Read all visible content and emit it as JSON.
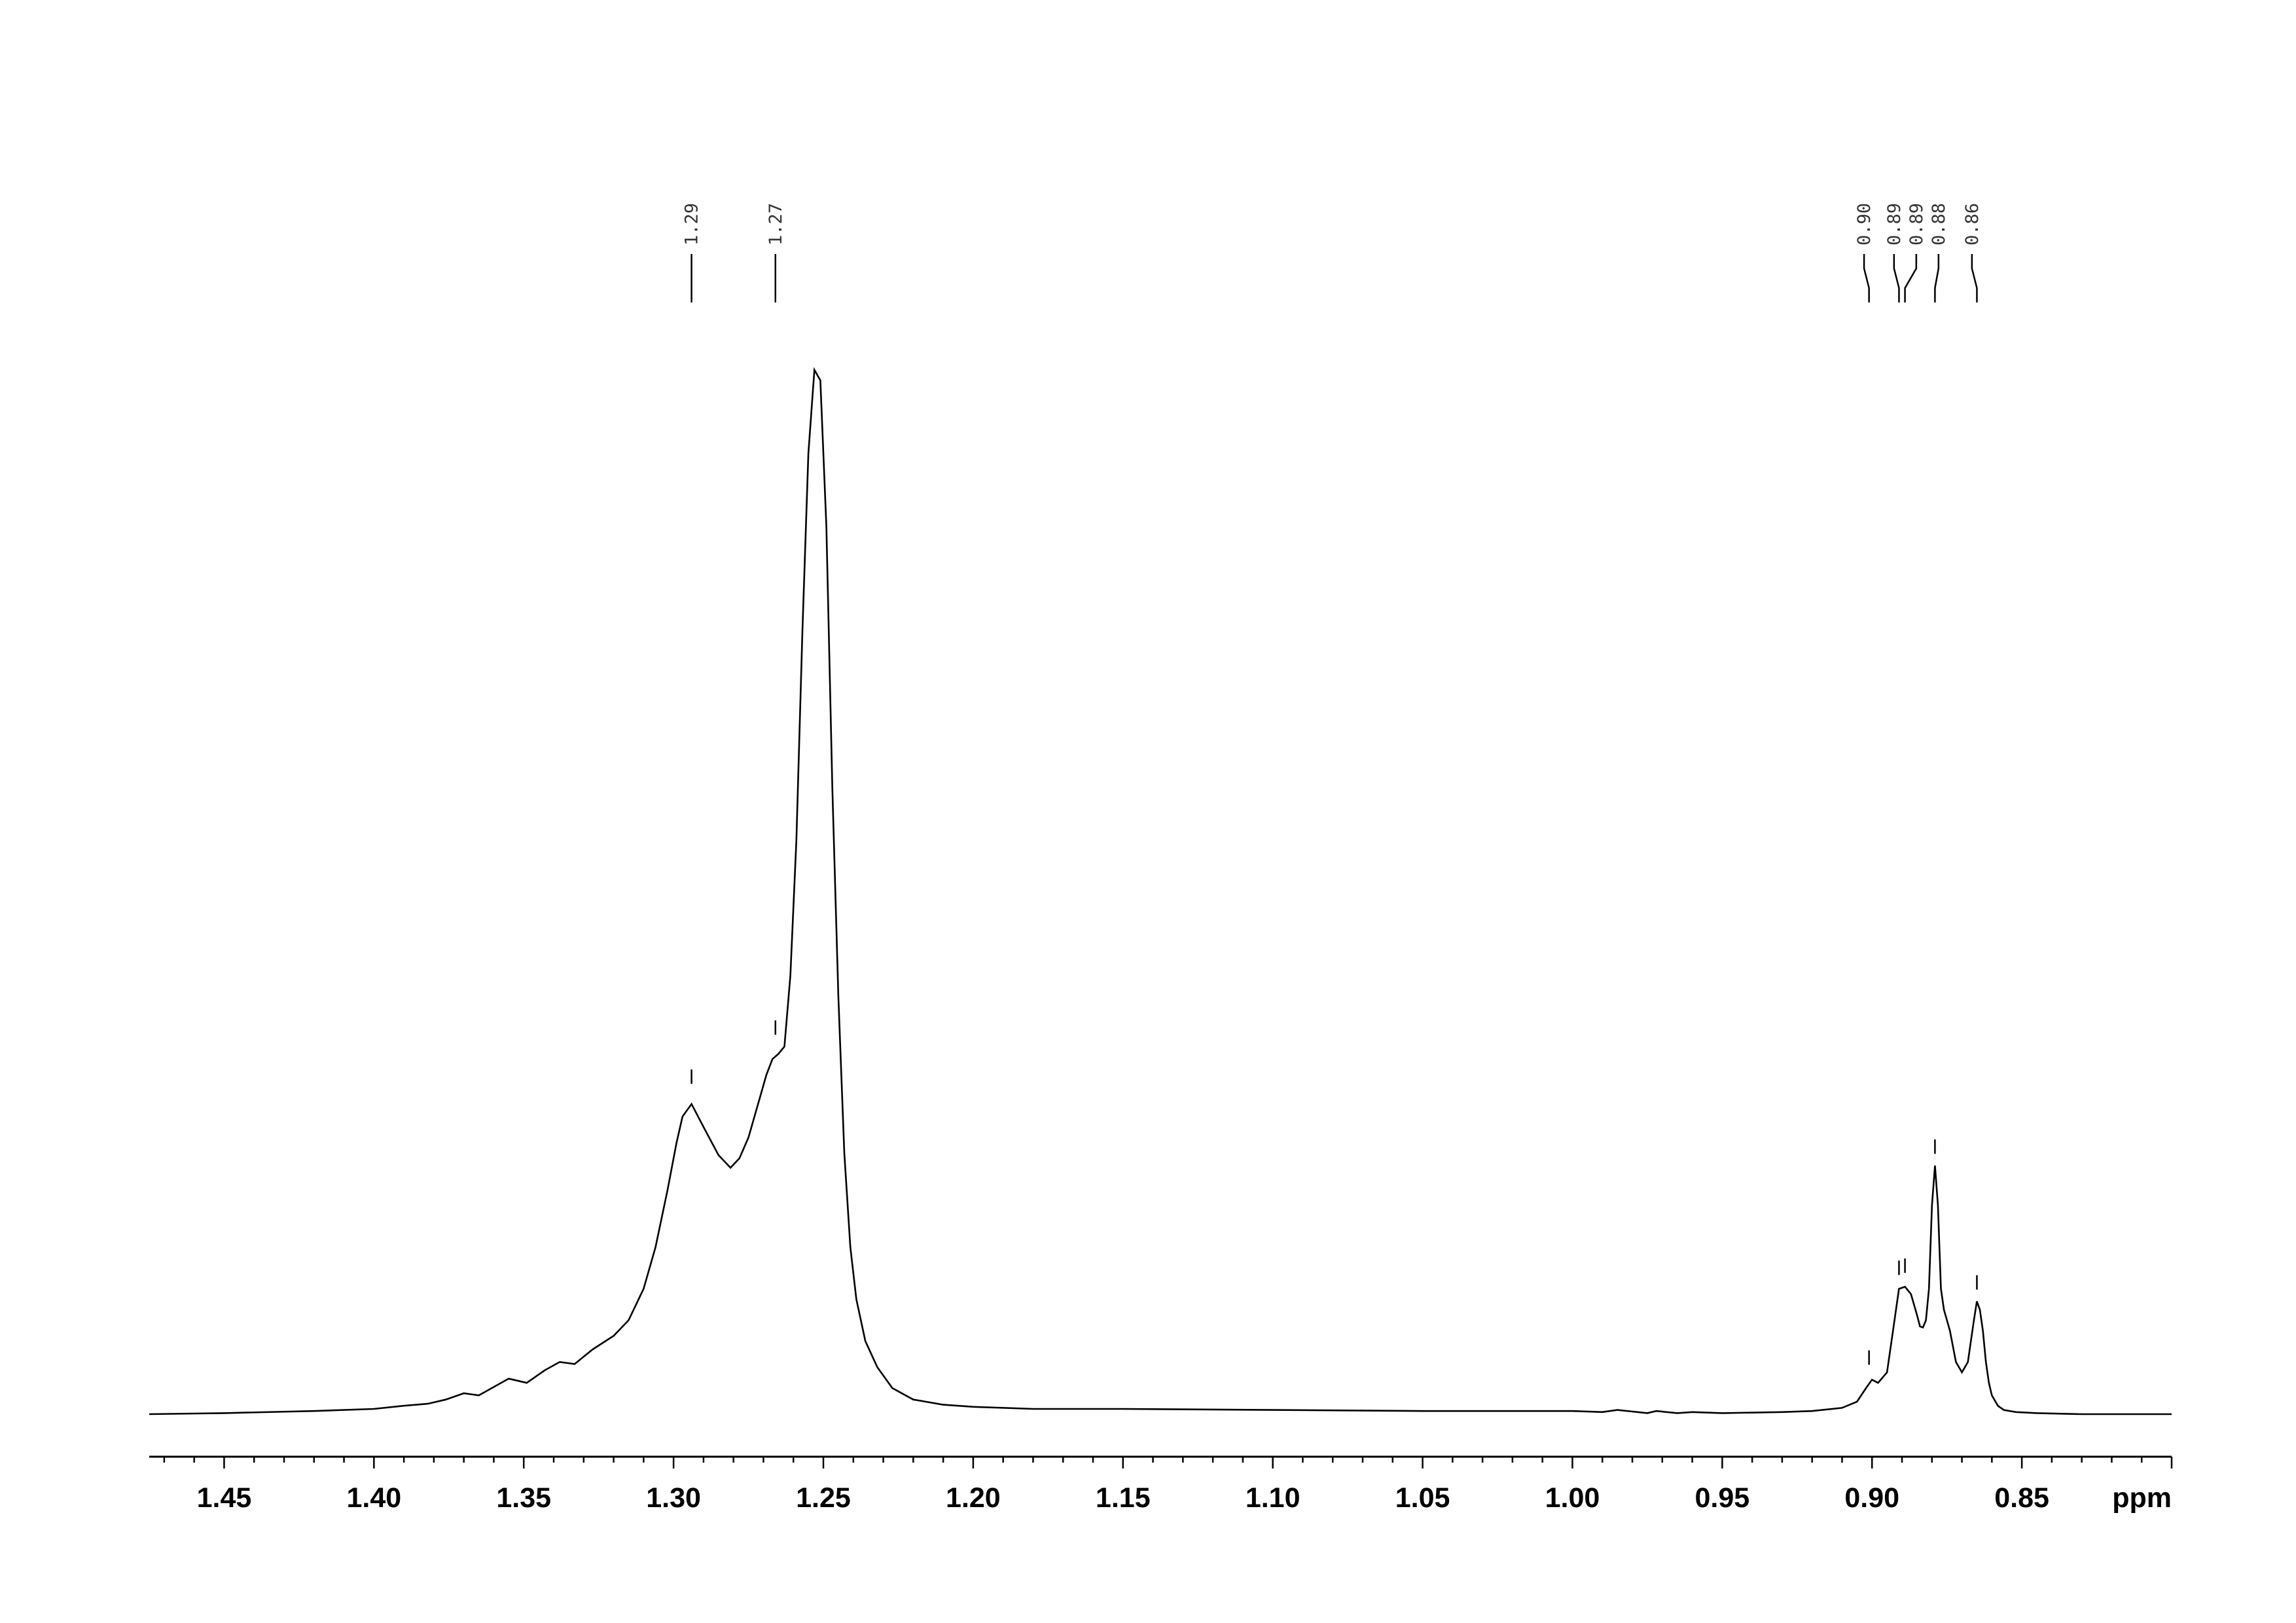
{
  "chart_data": {
    "type": "line",
    "title": "",
    "xlabel": "ppm",
    "ylabel": "",
    "x_reversed": true,
    "xlim": [
      1.475,
      0.8
    ],
    "ylim": [
      -0.02,
      1.08
    ],
    "grid": false,
    "legend": "none",
    "x_ticks": [
      "1.45",
      "1.40",
      "1.35",
      "1.30",
      "1.25",
      "1.20",
      "1.15",
      "1.10",
      "1.05",
      "1.00",
      "0.95",
      "0.90",
      "0.85"
    ],
    "tick_values": [
      1.45,
      1.4,
      1.35,
      1.3,
      1.25,
      1.2,
      1.15,
      1.1,
      1.05,
      1.0,
      0.95,
      0.9,
      0.85
    ],
    "peak_labels": [
      {
        "label": "1.29",
        "ppm": 1.294,
        "height": 0.305
      },
      {
        "label": "1.27",
        "ppm": 1.266,
        "height": 0.352
      },
      {
        "label": "0.90",
        "ppm": 0.901,
        "height": 0.036
      },
      {
        "label": "0.89",
        "ppm": 0.891,
        "height": 0.122
      },
      {
        "label": "0.89",
        "ppm": 0.889,
        "height": 0.124
      },
      {
        "label": "0.88",
        "ppm": 0.879,
        "height": 0.238
      },
      {
        "label": "0.86",
        "ppm": 0.865,
        "height": 0.108
      }
    ],
    "series": [
      {
        "x": [
          1.475,
          1.45,
          1.42,
          1.4,
          1.39,
          1.382,
          1.376,
          1.37,
          1.365,
          1.36,
          1.355,
          1.349,
          1.343,
          1.338,
          1.333,
          1.327,
          1.32,
          1.315,
          1.31,
          1.306,
          1.302,
          1.299,
          1.297,
          1.294,
          1.29,
          1.285,
          1.281,
          1.278,
          1.275,
          1.272,
          1.269,
          1.267,
          1.265,
          1.263,
          1.261,
          1.259,
          1.257,
          1.255,
          1.253,
          1.251,
          1.249,
          1.247,
          1.245,
          1.243,
          1.241,
          1.239,
          1.236,
          1.232,
          1.227,
          1.22,
          1.21,
          1.2,
          1.18,
          1.15,
          1.1,
          1.05,
          1.0,
          0.99,
          0.985,
          0.975,
          0.972,
          0.965,
          0.96,
          0.95,
          0.93,
          0.92,
          0.91,
          0.905,
          0.902,
          0.9,
          0.898,
          0.895,
          0.893,
          0.891,
          0.889,
          0.887,
          0.885,
          0.884,
          0.883,
          0.882,
          0.881,
          0.88,
          0.879,
          0.878,
          0.877,
          0.876,
          0.874,
          0.872,
          0.87,
          0.868,
          0.867,
          0.866,
          0.865,
          0.864,
          0.863,
          0.862,
          0.861,
          0.86,
          0.858,
          0.856,
          0.852,
          0.845,
          0.83,
          0.8
        ],
        "y": [
          0.0,
          0.001,
          0.003,
          0.005,
          0.008,
          0.01,
          0.014,
          0.02,
          0.018,
          0.026,
          0.034,
          0.03,
          0.042,
          0.05,
          0.048,
          0.062,
          0.075,
          0.09,
          0.12,
          0.16,
          0.215,
          0.26,
          0.285,
          0.297,
          0.275,
          0.248,
          0.236,
          0.245,
          0.265,
          0.295,
          0.325,
          0.34,
          0.345,
          0.352,
          0.42,
          0.55,
          0.75,
          0.92,
          1.0,
          0.99,
          0.85,
          0.6,
          0.4,
          0.25,
          0.16,
          0.11,
          0.07,
          0.045,
          0.025,
          0.014,
          0.009,
          0.007,
          0.005,
          0.005,
          0.004,
          0.003,
          0.003,
          0.002,
          0.004,
          0.001,
          0.003,
          0.001,
          0.002,
          0.001,
          0.002,
          0.003,
          0.006,
          0.012,
          0.025,
          0.033,
          0.03,
          0.04,
          0.08,
          0.12,
          0.122,
          0.115,
          0.095,
          0.084,
          0.083,
          0.09,
          0.12,
          0.2,
          0.238,
          0.2,
          0.12,
          0.1,
          0.08,
          0.05,
          0.04,
          0.05,
          0.07,
          0.09,
          0.108,
          0.1,
          0.08,
          0.05,
          0.03,
          0.018,
          0.008,
          0.004,
          0.002,
          0.001,
          0.0,
          0.0
        ]
      }
    ]
  }
}
